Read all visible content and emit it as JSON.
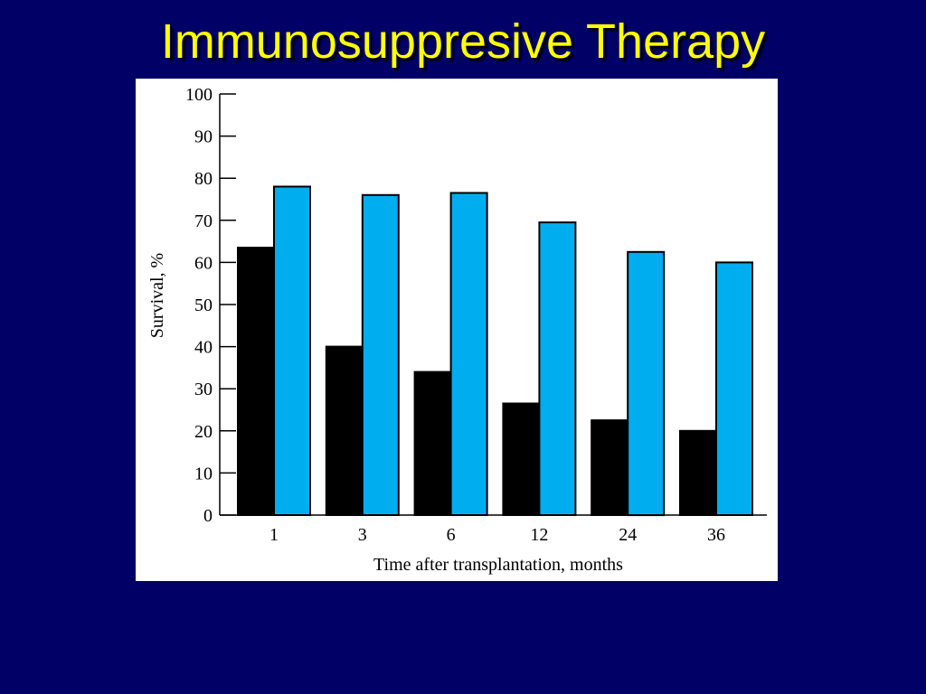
{
  "slide": {
    "title": "Immunosuppresive Therapy"
  },
  "colors": {
    "background": "#000066",
    "title": "#ffff00",
    "series_dark": "#000000",
    "series_blue": "#00aeef"
  },
  "chart_data": {
    "type": "bar",
    "title": "",
    "xlabel": "Time after transplantation, months",
    "ylabel": "Survival, %",
    "ylim": [
      0,
      100
    ],
    "yticks": [
      0,
      10,
      20,
      30,
      40,
      50,
      60,
      70,
      80,
      90,
      100
    ],
    "categories": [
      "1",
      "3",
      "6",
      "12",
      "24",
      "36"
    ],
    "grid": false,
    "legend": "none",
    "series": [
      {
        "values": [
          63.5,
          40,
          34,
          26.5,
          22.5,
          20
        ],
        "color": "#000000"
      },
      {
        "values": [
          78,
          76,
          76.5,
          69.5,
          62.5,
          60
        ],
        "color": "#00aeef"
      }
    ]
  }
}
